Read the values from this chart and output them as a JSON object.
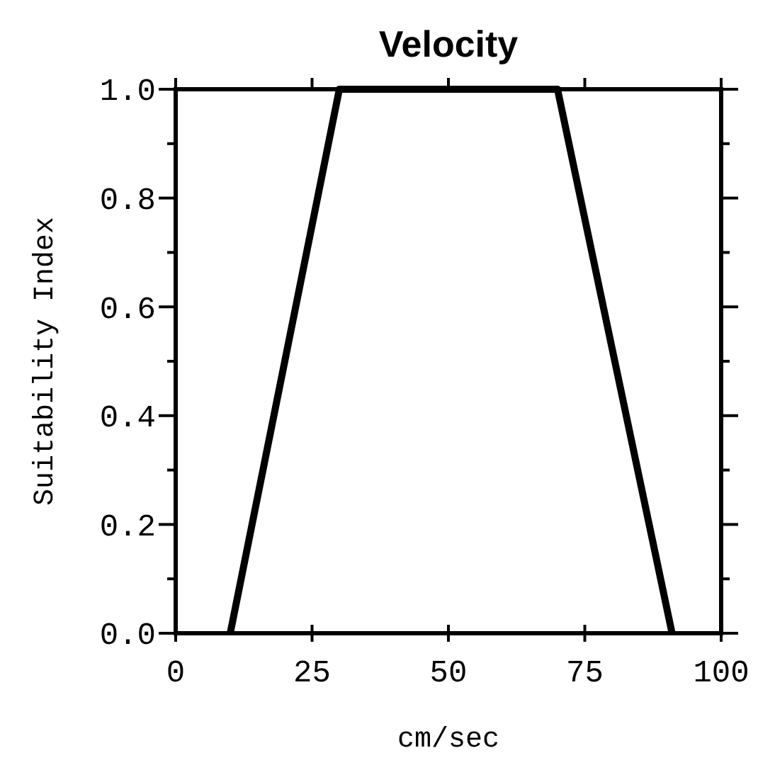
{
  "chart_data": {
    "type": "line",
    "title": "Velocity",
    "xlabel": "cm/sec",
    "ylabel": "Suitability Index",
    "x": [
      10,
      30,
      70,
      91
    ],
    "series": [
      {
        "color": "#000000",
        "values": [
          0,
          1,
          1,
          0
        ]
      }
    ],
    "xlim": [
      0,
      100
    ],
    "xticks": [
      0,
      25,
      50,
      75,
      100
    ],
    "ylim": [
      0,
      1
    ],
    "yticks": [
      {
        "value": 0,
        "label": "0.0"
      },
      {
        "value": 0.1,
        "label": null
      },
      {
        "value": 0.2,
        "label": "0.2"
      },
      {
        "value": 0.3,
        "label": null
      },
      {
        "value": 0.4,
        "label": "0.4"
      },
      {
        "value": 0.5,
        "label": null
      },
      {
        "value": 0.6,
        "label": "0.6"
      },
      {
        "value": 0.7,
        "label": null
      },
      {
        "value": 0.8,
        "label": "0.8"
      },
      {
        "value": 0.9,
        "label": null
      },
      {
        "value": 1,
        "label": "1.0"
      }
    ],
    "grid": false,
    "marker": "none",
    "line_style": "solid"
  }
}
